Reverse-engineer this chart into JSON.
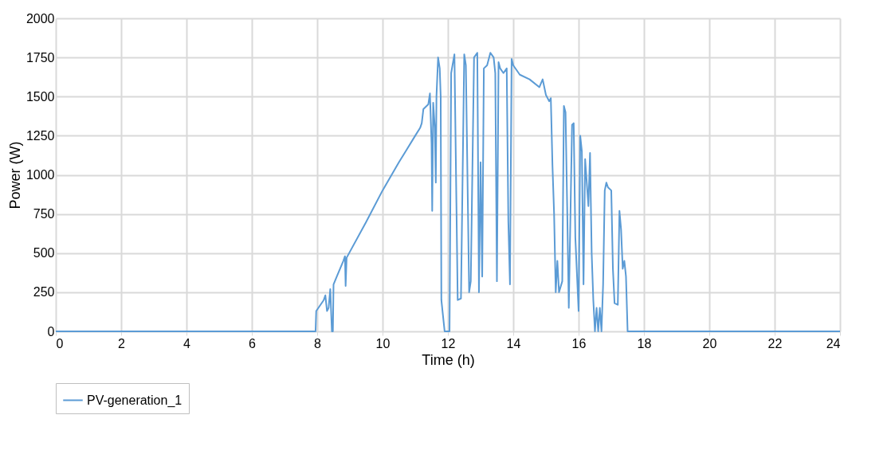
{
  "chart_data": {
    "type": "line",
    "xlabel": "Time (h)",
    "ylabel": "Power (W)",
    "x": [
      0,
      7.95,
      7.97,
      8.2,
      8.25,
      8.3,
      8.35,
      8.4,
      8.45,
      8.48,
      8.5,
      8.6,
      8.8,
      8.85,
      8.87,
      8.9,
      9.5,
      10,
      10.5,
      11,
      11.15,
      11.2,
      11.25,
      11.4,
      11.45,
      11.5,
      11.52,
      11.55,
      11.6,
      11.63,
      11.65,
      11.7,
      11.75,
      11.78,
      11.8,
      11.85,
      11.9,
      12.05,
      12.1,
      12.2,
      12.3,
      12.4,
      12.5,
      12.55,
      12.65,
      12.7,
      12.8,
      12.9,
      12.95,
      13.0,
      13.05,
      13.1,
      13.2,
      13.3,
      13.4,
      13.45,
      13.5,
      13.55,
      13.6,
      13.7,
      13.8,
      13.85,
      13.9,
      13.95,
      14.0,
      14.2,
      14.5,
      14.8,
      14.9,
      15.0,
      15.1,
      15.15,
      15.2,
      15.25,
      15.3,
      15.35,
      15.4,
      15.5,
      15.55,
      15.6,
      15.65,
      15.7,
      15.8,
      15.85,
      15.9,
      16.0,
      16.05,
      16.1,
      16.15,
      16.2,
      16.3,
      16.35,
      16.4,
      16.45,
      16.5,
      16.55,
      16.6,
      16.65,
      16.7,
      16.75,
      16.8,
      16.85,
      16.9,
      17.0,
      17.05,
      17.1,
      17.2,
      17.25,
      17.3,
      17.35,
      17.4,
      17.45,
      17.5,
      24
    ],
    "series": [
      {
        "name": "PV-generation_1",
        "color": "#5b9bd5",
        "values": [
          0,
          0,
          130,
          200,
          230,
          130,
          150,
          270,
          0,
          0,
          300,
          350,
          450,
          480,
          290,
          470,
          700,
          900,
          1080,
          1250,
          1300,
          1330,
          1420,
          1450,
          1520,
          1200,
          770,
          1460,
          1300,
          950,
          1500,
          1750,
          1680,
          1500,
          200,
          100,
          0,
          0,
          1650,
          1770,
          200,
          210,
          1770,
          1700,
          250,
          320,
          1750,
          1780,
          250,
          1080,
          350,
          1680,
          1700,
          1780,
          1750,
          1650,
          320,
          1720,
          1680,
          1650,
          1680,
          700,
          300,
          1740,
          1700,
          1640,
          1610,
          1560,
          1610,
          1510,
          1470,
          1490,
          1060,
          750,
          250,
          450,
          250,
          320,
          1440,
          1400,
          800,
          150,
          1320,
          1330,
          600,
          130,
          1250,
          1150,
          300,
          1100,
          800,
          1140,
          500,
          200,
          0,
          150,
          0,
          150,
          0,
          300,
          900,
          950,
          920,
          900,
          400,
          180,
          170,
          770,
          650,
          400,
          450,
          350,
          0,
          0
        ]
      }
    ],
    "xlim": [
      0,
      24
    ],
    "xticks": [
      0,
      2,
      4,
      6,
      8,
      10,
      12,
      14,
      16,
      18,
      20,
      22,
      24
    ],
    "ylim": [
      0,
      2000
    ],
    "yticks": [
      0,
      250,
      500,
      750,
      1000,
      1250,
      1500,
      1750,
      2000
    ],
    "grid": true,
    "legend": "bottom",
    "marker": "none",
    "line_style": "solid"
  }
}
